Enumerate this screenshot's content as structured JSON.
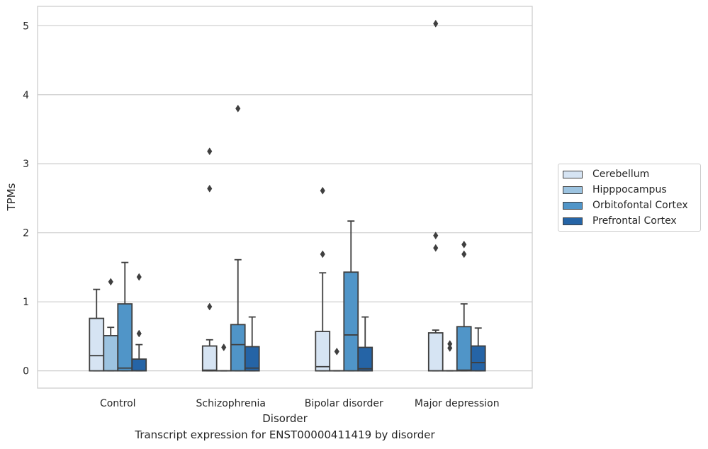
{
  "caption": "Transcript expression for ENST00000411419 by disorder",
  "chart_data": {
    "type": "box",
    "xlabel": "Disorder",
    "ylabel": "TPMs",
    "ylim": [
      -0.25,
      5.28
    ],
    "yticks": [
      0,
      1,
      2,
      3,
      4,
      5
    ],
    "grid": true,
    "legend_position": "right",
    "categories": [
      "Control",
      "Schizophrenia",
      "Bipolar disorder",
      "Major depression"
    ],
    "series": [
      {
        "name": "Cerebellum",
        "color": "#d6e4f3",
        "boxes": [
          {
            "whislo": 0,
            "q1": 0,
            "med": 0.22,
            "q3": 0.76,
            "whishi": 1.18,
            "fliers": []
          },
          {
            "whislo": 0,
            "q1": 0,
            "med": 0.01,
            "q3": 0.36,
            "whishi": 0.45,
            "fliers": [
              0.93,
              2.64,
              3.18
            ]
          },
          {
            "whislo": 0,
            "q1": 0,
            "med": 0.06,
            "q3": 0.57,
            "whishi": 1.42,
            "fliers": [
              1.69,
              2.61
            ]
          },
          {
            "whislo": 0,
            "q1": 0,
            "med": 0,
            "q3": 0.55,
            "whishi": 0.59,
            "fliers": [
              1.78,
              1.96,
              5.03
            ]
          }
        ]
      },
      {
        "name": "Hipppocampus",
        "color": "#9cc3e0",
        "boxes": [
          {
            "whislo": 0,
            "q1": 0,
            "med": 0,
            "q3": 0.51,
            "whishi": 0.63,
            "fliers": [
              1.29
            ]
          },
          {
            "whislo": 0,
            "q1": 0,
            "med": 0,
            "q3": 0,
            "whishi": 0,
            "fliers": [
              0.34
            ]
          },
          {
            "whislo": 0,
            "q1": 0,
            "med": 0,
            "q3": 0,
            "whishi": 0,
            "fliers": [
              0.28
            ]
          },
          {
            "whislo": 0,
            "q1": 0,
            "med": 0,
            "q3": 0,
            "whishi": 0,
            "fliers": [
              0.33,
              0.39
            ]
          }
        ]
      },
      {
        "name": "Orbitofontal Cortex",
        "color": "#5095c8",
        "boxes": [
          {
            "whislo": 0,
            "q1": 0,
            "med": 0.04,
            "q3": 0.97,
            "whishi": 1.57,
            "fliers": []
          },
          {
            "whislo": 0,
            "q1": 0,
            "med": 0.38,
            "q3": 0.67,
            "whishi": 1.61,
            "fliers": [
              3.8
            ]
          },
          {
            "whislo": 0,
            "q1": 0,
            "med": 0.52,
            "q3": 1.43,
            "whishi": 2.17,
            "fliers": []
          },
          {
            "whislo": 0,
            "q1": 0,
            "med": 0.01,
            "q3": 0.64,
            "whishi": 0.97,
            "fliers": [
              1.69,
              1.83
            ]
          }
        ]
      },
      {
        "name": "Prefrontal Cortex",
        "color": "#2564a6",
        "boxes": [
          {
            "whislo": 0,
            "q1": 0,
            "med": 0,
            "q3": 0.17,
            "whishi": 0.38,
            "fliers": [
              0.54,
              1.36
            ]
          },
          {
            "whislo": 0,
            "q1": 0,
            "med": 0.04,
            "q3": 0.35,
            "whishi": 0.78,
            "fliers": []
          },
          {
            "whislo": 0,
            "q1": 0,
            "med": 0.03,
            "q3": 0.34,
            "whishi": 0.78,
            "fliers": []
          },
          {
            "whislo": 0,
            "q1": 0,
            "med": 0.12,
            "q3": 0.36,
            "whishi": 0.62,
            "fliers": []
          }
        ]
      }
    ]
  }
}
